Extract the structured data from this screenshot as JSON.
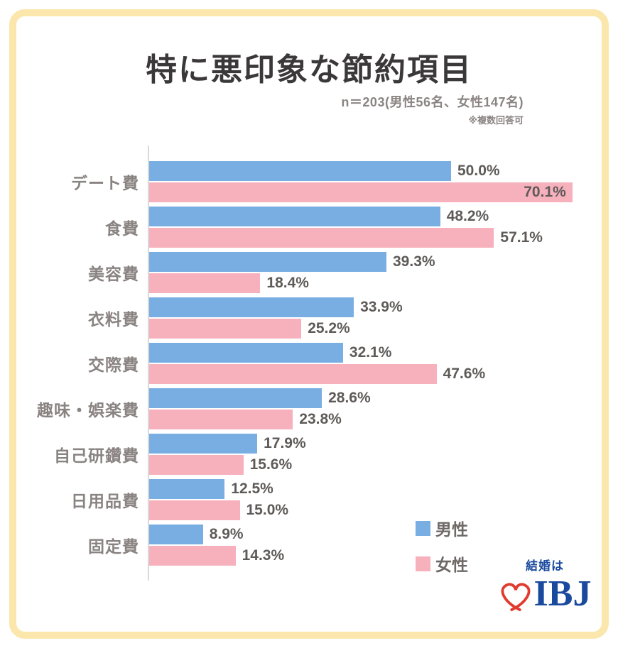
{
  "title": "特に悪印象な節約項目",
  "subtitle": "n＝203(男性56名、女性147名)",
  "note": "※複数回答可",
  "legend": {
    "male": "男性",
    "female": "女性"
  },
  "logo": {
    "tagline": "結婚は",
    "brand": "IBJ",
    "icon": "heart-ribbon-icon"
  },
  "colors": {
    "male_bar": "#79aee3",
    "female_bar": "#f7b1bd",
    "frame_border": "#fbe6ac",
    "title_text": "#3b3839",
    "category_label": "#898381",
    "value_label": "#5e5a58",
    "axis_line": "#d9d9d9",
    "logo_navy": "#1a4a9e",
    "heart_red": "#e23a2e"
  },
  "chart_data": {
    "type": "bar",
    "orientation": "horizontal",
    "title": "特に悪印象な節約項目",
    "unit": "%",
    "xlim": [
      0,
      71
    ],
    "grid": false,
    "value_labels": true,
    "legend_position": "bottom-right",
    "categories": [
      "デート費",
      "食費",
      "美容費",
      "衣料費",
      "交際費",
      "趣味・娯楽費",
      "自己研鑽費",
      "日用品費",
      "固定費"
    ],
    "series": [
      {
        "name": "男性",
        "values": [
          50.0,
          48.2,
          39.3,
          33.9,
          32.1,
          28.6,
          17.9,
          12.5,
          8.9
        ]
      },
      {
        "name": "女性",
        "values": [
          70.1,
          57.1,
          18.4,
          25.2,
          47.6,
          23.8,
          15.6,
          15.0,
          14.3
        ]
      }
    ]
  }
}
